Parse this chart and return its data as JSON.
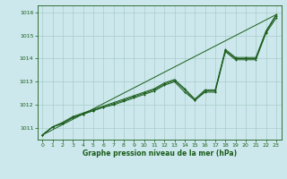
{
  "title": "Graphe pression niveau de la mer (hPa)",
  "bg_color": "#cce8ec",
  "grid_color": "#aacccc",
  "line_color": "#1a5c1a",
  "xlim": [
    -0.5,
    23.5
  ],
  "ylim": [
    1010.5,
    1016.3
  ],
  "xticks": [
    0,
    1,
    2,
    3,
    4,
    5,
    6,
    7,
    8,
    9,
    10,
    11,
    12,
    13,
    14,
    15,
    16,
    17,
    18,
    19,
    20,
    21,
    22,
    23
  ],
  "yticks": [
    1011,
    1012,
    1013,
    1014,
    1015,
    1016
  ],
  "series_ref": {
    "x": [
      0,
      23
    ],
    "y": [
      1010.7,
      1015.9
    ]
  },
  "series1": {
    "x": [
      0,
      1,
      2,
      3,
      4,
      5,
      6,
      7,
      8,
      9,
      10,
      11,
      12,
      13,
      14,
      15,
      16,
      17,
      18,
      19,
      20,
      21,
      22,
      23
    ],
    "y": [
      1010.7,
      1011.05,
      1011.2,
      1011.45,
      1011.6,
      1011.75,
      1011.9,
      1012.05,
      1012.2,
      1012.35,
      1012.5,
      1012.65,
      1012.9,
      1013.05,
      1012.65,
      1012.2,
      1012.6,
      1012.6,
      1014.35,
      1014.0,
      1014.0,
      1014.0,
      1015.15,
      1015.85
    ]
  },
  "series2": {
    "x": [
      0,
      1,
      2,
      3,
      4,
      5,
      6,
      7,
      8,
      9,
      10,
      11,
      12,
      13,
      14,
      15,
      16,
      17,
      18,
      19,
      20,
      21,
      22,
      23
    ],
    "y": [
      1010.7,
      1011.05,
      1011.2,
      1011.45,
      1011.6,
      1011.75,
      1011.9,
      1012.0,
      1012.15,
      1012.3,
      1012.45,
      1012.6,
      1012.85,
      1013.0,
      1012.55,
      1012.2,
      1012.55,
      1012.55,
      1014.3,
      1013.95,
      1013.95,
      1013.95,
      1015.1,
      1015.75
    ]
  },
  "series3": {
    "x": [
      0,
      1,
      2,
      3,
      4,
      5,
      6,
      7,
      8,
      9,
      10,
      11,
      12,
      13,
      14,
      15,
      16,
      17,
      18,
      19,
      20,
      21,
      22,
      23
    ],
    "y": [
      1010.7,
      1011.05,
      1011.25,
      1011.5,
      1011.65,
      1011.8,
      1011.95,
      1012.1,
      1012.25,
      1012.4,
      1012.55,
      1012.7,
      1012.95,
      1013.1,
      1012.7,
      1012.25,
      1012.65,
      1012.65,
      1014.4,
      1014.05,
      1014.05,
      1014.05,
      1015.2,
      1015.9
    ]
  }
}
